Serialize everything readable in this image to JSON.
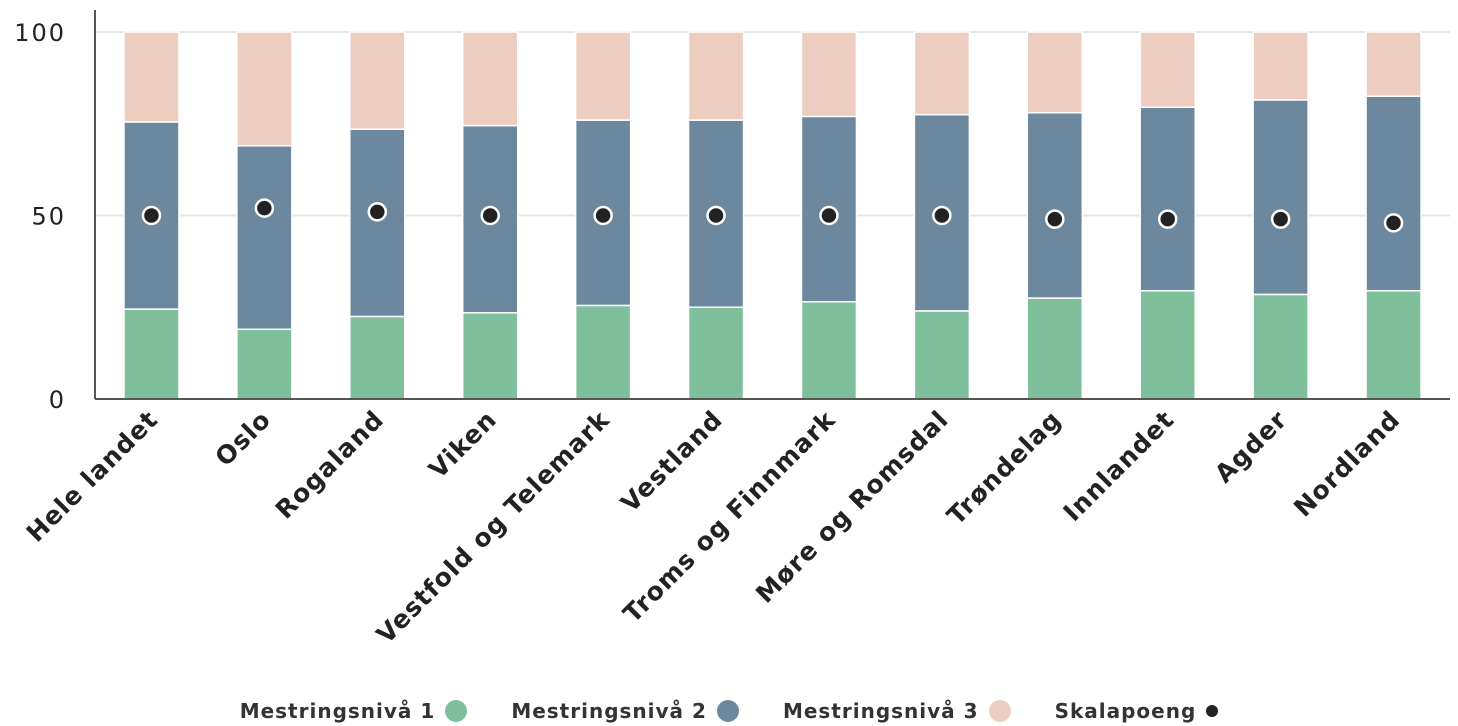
{
  "chart_data": {
    "type": "bar",
    "stacked": true,
    "categories": [
      "Hele landet",
      "Oslo",
      "Rogaland",
      "Viken",
      "Vestfold og Telemark",
      "Vestland",
      "Troms og Finnmark",
      "Møre og Romsdal",
      "Trøndelag",
      "Innlandet",
      "Agder",
      "Nordland"
    ],
    "series": [
      {
        "name": "Mestringsnivå 1",
        "color": "#7fbf9b",
        "values": [
          24.5,
          19,
          22.5,
          23.5,
          25.5,
          25,
          26.5,
          24,
          27.5,
          29.5,
          28.5,
          29.5
        ]
      },
      {
        "name": "Mestringsnivå 2",
        "color": "#6b889e",
        "values": [
          51,
          50,
          51,
          51,
          50.5,
          51,
          50.5,
          53.5,
          50.5,
          50,
          53,
          53
        ]
      },
      {
        "name": "Mestringsnivå 3",
        "color": "#eccdbf",
        "values": [
          24.5,
          31,
          26.5,
          25.5,
          24,
          24,
          23,
          22.5,
          22,
          20.5,
          18.5,
          17.5
        ]
      }
    ],
    "points": {
      "name": "Skalapoeng",
      "color": "#222222",
      "values": [
        50,
        52,
        51,
        50,
        50,
        50,
        50,
        50,
        49,
        49,
        49,
        48
      ]
    },
    "yticks": [
      "0",
      "50",
      "100"
    ],
    "ylim": [
      0,
      100
    ],
    "grid": true,
    "legend_position": "bottom"
  },
  "legend": [
    {
      "label": "Mestringsnivå 1",
      "color": "#7fbf9b",
      "marker": "circle"
    },
    {
      "label": "Mestringsnivå 2",
      "color": "#6b889e",
      "marker": "circle"
    },
    {
      "label": "Mestringsnivå 3",
      "color": "#eccdbf",
      "marker": "circle"
    },
    {
      "label": "Skalapoeng",
      "color": "#222222",
      "marker": "dot"
    }
  ]
}
